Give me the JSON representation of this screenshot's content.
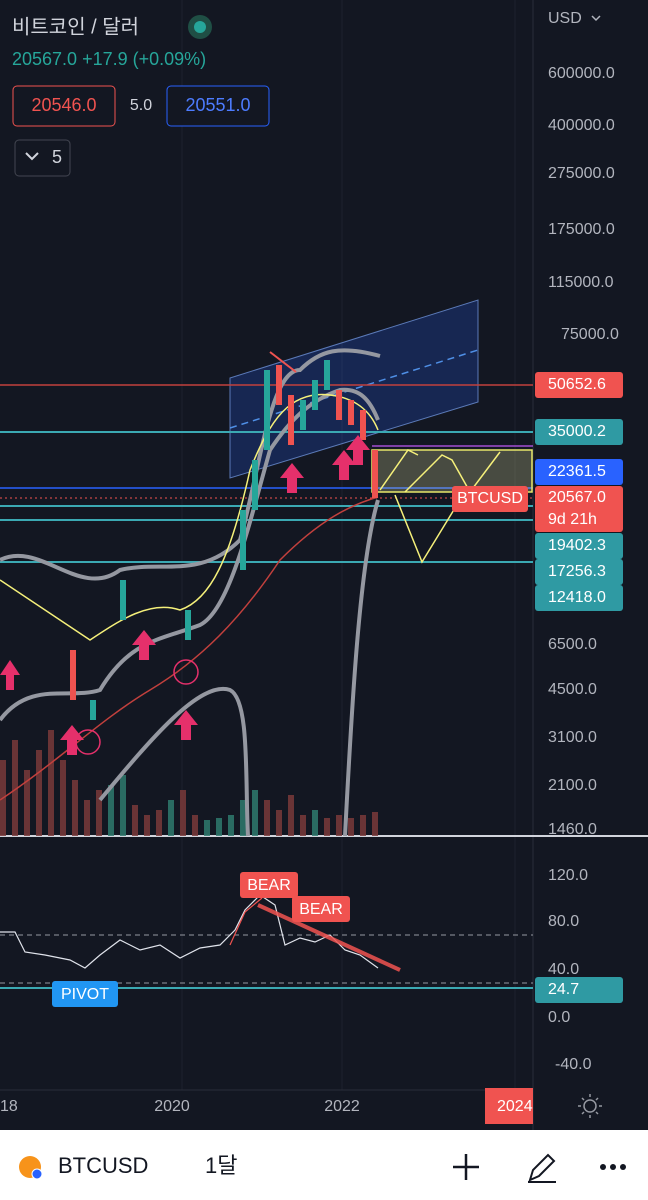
{
  "header": {
    "title": "비트코인 / 달러",
    "quote": "20567.0 +17.9 (+0.09%)",
    "bid": "20546.0",
    "spread": "5.0",
    "ask": "20551.0",
    "indicators": "5"
  },
  "price_axis": {
    "currency": "USD",
    "levels": [
      "600000.0",
      "400000.0",
      "275000.0",
      "175000.0",
      "115000.0",
      "75000.0",
      "6500.0",
      "4500.0",
      "3100.0",
      "2100.0",
      "1460.0"
    ]
  },
  "price_tags": [
    "50652.6",
    "35000.2",
    "22361.5",
    "20567.0",
    "9d 21h",
    "19402.3",
    "17256.3",
    "12418.0"
  ],
  "indicator_axis": {
    "levels": [
      "120.0",
      "80.0",
      "40.0",
      "0.0",
      "-40.0"
    ],
    "tag": "24.7"
  },
  "time_axis": [
    "18",
    "2020",
    "2022",
    "2024"
  ],
  "annotations": {
    "symbol_tag": "BTCUSD",
    "bear_1": "BEAR",
    "bear_2": "BEAR",
    "pivot": "PIVOT"
  },
  "toolbar": {
    "symbol": "BTCUSD",
    "interval": "1달"
  }
}
